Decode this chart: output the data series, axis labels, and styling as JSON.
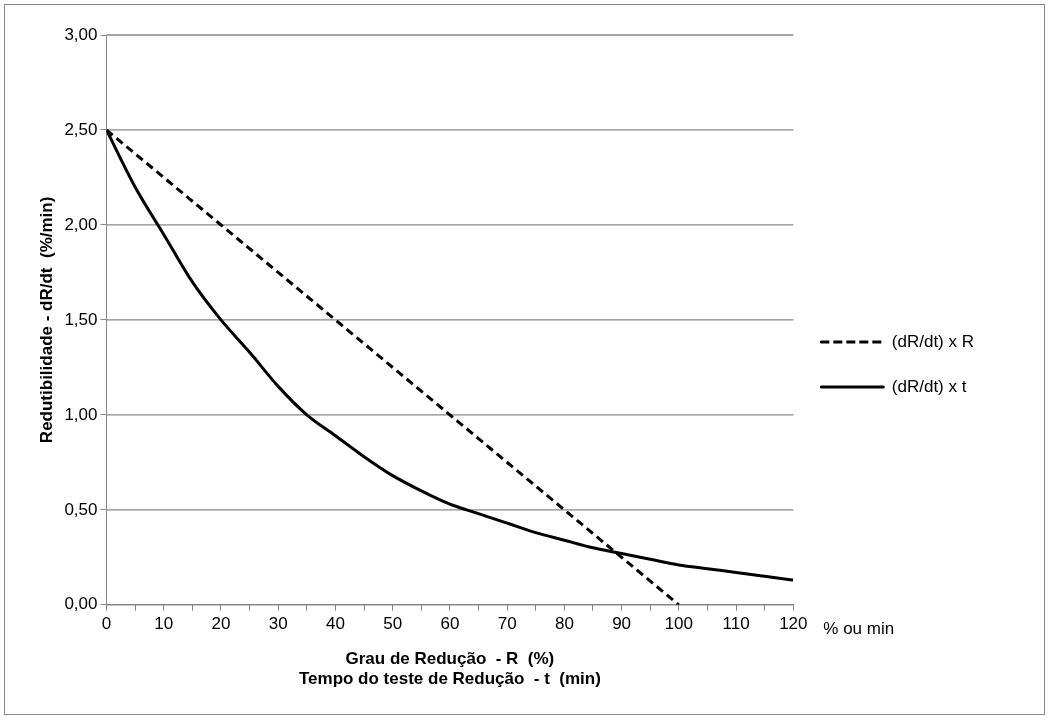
{
  "chart_data": {
    "type": "line",
    "xlabel": "Grau de Redução  - R  (%)\nTempo do teste de Redução  - t  (min)",
    "ylabel": "Redutibilidade - dR/dt  (%/min)",
    "annotations": [
      "% ou min"
    ],
    "xlim": [
      0,
      120
    ],
    "xticks": [
      0,
      {
        "value": 5,
        "label": null
      },
      10,
      {
        "value": 15,
        "label": null
      },
      20,
      {
        "value": 25,
        "label": null
      },
      30,
      {
        "value": 35,
        "label": null
      },
      40,
      {
        "value": 45,
        "label": null
      },
      50,
      {
        "value": 55,
        "label": null
      },
      60,
      {
        "value": 65,
        "label": null
      },
      70,
      {
        "value": 75,
        "label": null
      },
      80,
      {
        "value": 85,
        "label": null
      },
      90,
      {
        "value": 95,
        "label": null
      },
      100,
      {
        "value": 105,
        "label": null
      },
      110,
      {
        "value": 115,
        "label": null
      },
      120
    ],
    "ylim": [
      0,
      3
    ],
    "yticks": [
      {
        "value": 0,
        "label": "0,00"
      },
      {
        "value": 0.5,
        "label": "0,50"
      },
      {
        "value": 1,
        "label": "1,00"
      },
      {
        "value": 1.5,
        "label": "1,50"
      },
      {
        "value": 2,
        "label": "2,00"
      },
      {
        "value": 2.5,
        "label": "2,50"
      },
      {
        "value": 3,
        "label": "3,00"
      }
    ],
    "grid": "y",
    "legend": "right",
    "marker": "none",
    "series": [
      {
        "name": "(dR/dt) x R",
        "color": "#000000",
        "line_style": "dashed",
        "x": [
          0,
          100
        ],
        "values": [
          2.5,
          0
        ]
      },
      {
        "name": "(dR/dt) x t",
        "color": "#000000",
        "line_style": "solid",
        "x": [
          0,
          5,
          10,
          15,
          20,
          25,
          30,
          35,
          40,
          45,
          50,
          55,
          60,
          65,
          70,
          75,
          80,
          85,
          90,
          95,
          100,
          105,
          110,
          115,
          120
        ],
        "values": [
          2.5,
          2.2,
          1.95,
          1.7,
          1.5,
          1.33,
          1.15,
          1.0,
          0.89,
          0.78,
          0.68,
          0.6,
          0.53,
          0.48,
          0.43,
          0.38,
          0.34,
          0.3,
          0.27,
          0.24,
          0.21,
          0.19,
          0.17,
          0.15,
          0.13
        ]
      }
    ]
  }
}
